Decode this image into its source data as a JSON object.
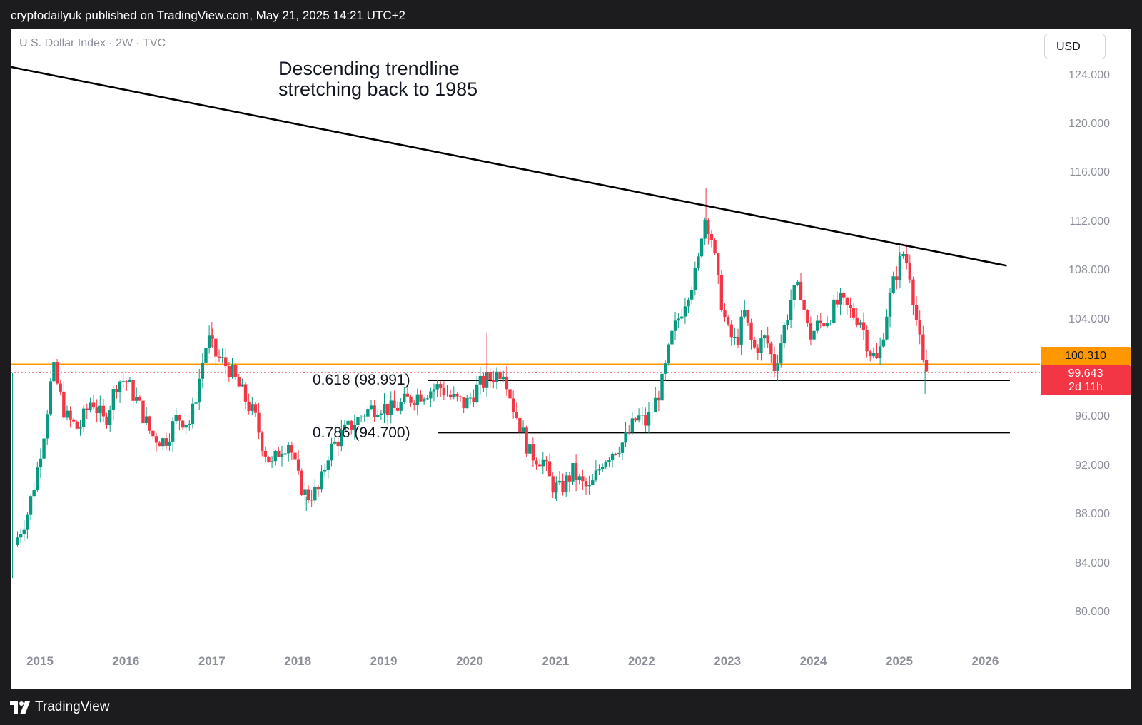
{
  "header": {
    "published": "cryptodailyuk published on TradingView.com, May 21, 2025 14:21 UTC+2"
  },
  "chart_header": {
    "symbol": "U.S. Dollar Index · 2W · TVC",
    "currency_button": "USD"
  },
  "annotation": {
    "line1": "Descending trendline",
    "line2": "stretching back to 1985"
  },
  "fib_levels": [
    {
      "label": "0.618 (98.991)",
      "value": 98.991
    },
    {
      "label": "0.786 (94.700)",
      "value": 94.7
    }
  ],
  "price_tags": {
    "resistance": "100.310",
    "last_price": "99.643",
    "countdown": "2d 11h"
  },
  "footer": {
    "brand": "TradingView"
  },
  "colors": {
    "up": "#089981",
    "down": "#f23645",
    "resistance_line": "#ff9800",
    "trendline": "#000000"
  },
  "chart_data": {
    "type": "candlestick",
    "title": "U.S. Dollar Index · 2W · TVC",
    "y_axis": {
      "ticks": [
        "80.000",
        "84.000",
        "88.000",
        "92.000",
        "96.000",
        "104.000",
        "108.000",
        "112.000",
        "116.000",
        "120.000",
        "124.000"
      ],
      "range": [
        78,
        128
      ]
    },
    "x_axis": {
      "ticks": [
        "2015",
        "2016",
        "2017",
        "2018",
        "2019",
        "2020",
        "2021",
        "2022",
        "2023",
        "2024",
        "2025",
        "2026"
      ]
    },
    "trendline": {
      "from": {
        "x": 2014.65,
        "y": 124.7
      },
      "to": {
        "x": 2026.25,
        "y": 108.4
      }
    },
    "horizontal_levels": [
      {
        "name": "resistance",
        "value": 100.31
      },
      {
        "name": "0.618",
        "value": 98.991
      },
      {
        "name": "0.786",
        "value": 94.7
      },
      {
        "name": "last",
        "value": 99.643
      }
    ],
    "close_path": [
      [
        2014.7,
        85.5
      ],
      [
        2014.85,
        88.0
      ],
      [
        2014.95,
        91.0
      ],
      [
        2015.05,
        95.0
      ],
      [
        2015.15,
        100.0
      ],
      [
        2015.3,
        96.0
      ],
      [
        2015.45,
        95.0
      ],
      [
        2015.6,
        97.5
      ],
      [
        2015.75,
        95.5
      ],
      [
        2015.9,
        99.0
      ],
      [
        2016.0,
        99.0
      ],
      [
        2016.15,
        97.0
      ],
      [
        2016.3,
        94.5
      ],
      [
        2016.45,
        94.0
      ],
      [
        2016.6,
        96.0
      ],
      [
        2016.75,
        95.5
      ],
      [
        2016.85,
        99.0
      ],
      [
        2016.95,
        102.5
      ],
      [
        2017.05,
        101.0
      ],
      [
        2017.2,
        100.0
      ],
      [
        2017.35,
        98.0
      ],
      [
        2017.5,
        96.0
      ],
      [
        2017.6,
        93.5
      ],
      [
        2017.7,
        92.0
      ],
      [
        2017.8,
        93.5
      ],
      [
        2017.9,
        94.0
      ],
      [
        2018.0,
        91.0
      ],
      [
        2018.1,
        89.5
      ],
      [
        2018.25,
        90.0
      ],
      [
        2018.35,
        93.0
      ],
      [
        2018.5,
        94.5
      ],
      [
        2018.65,
        95.5
      ],
      [
        2018.8,
        96.5
      ],
      [
        2018.95,
        97.0
      ],
      [
        2019.1,
        96.5
      ],
      [
        2019.3,
        97.5
      ],
      [
        2019.45,
        98.0
      ],
      [
        2019.65,
        98.5
      ],
      [
        2019.8,
        97.5
      ],
      [
        2019.95,
        97.0
      ],
      [
        2020.1,
        98.5
      ],
      [
        2020.2,
        99.0
      ],
      [
        2020.3,
        99.5
      ],
      [
        2020.4,
        100.0
      ],
      [
        2020.5,
        97.0
      ],
      [
        2020.6,
        95.0
      ],
      [
        2020.7,
        93.0
      ],
      [
        2020.85,
        92.5
      ],
      [
        2020.95,
        90.5
      ],
      [
        2021.05,
        90.0
      ],
      [
        2021.2,
        91.5
      ],
      [
        2021.3,
        90.5
      ],
      [
        2021.4,
        90.0
      ],
      [
        2021.55,
        92.5
      ],
      [
        2021.7,
        93.5
      ],
      [
        2021.8,
        94.0
      ],
      [
        2021.95,
        96.0
      ],
      [
        2022.05,
        95.5
      ],
      [
        2022.15,
        97.0
      ],
      [
        2022.25,
        99.0
      ],
      [
        2022.35,
        102.5
      ],
      [
        2022.45,
        104.5
      ],
      [
        2022.55,
        106.5
      ],
      [
        2022.65,
        108.0
      ],
      [
        2022.72,
        112.5
      ],
      [
        2022.8,
        111.5
      ],
      [
        2022.9,
        106.5
      ],
      [
        2023.0,
        103.0
      ],
      [
        2023.1,
        102.0
      ],
      [
        2023.2,
        104.5
      ],
      [
        2023.3,
        101.5
      ],
      [
        2023.45,
        102.5
      ],
      [
        2023.55,
        100.0
      ],
      [
        2023.65,
        103.0
      ],
      [
        2023.75,
        106.0
      ],
      [
        2023.85,
        106.5
      ],
      [
        2023.95,
        102.5
      ],
      [
        2024.05,
        103.5
      ],
      [
        2024.15,
        104.0
      ],
      [
        2024.3,
        105.5
      ],
      [
        2024.45,
        104.5
      ],
      [
        2024.55,
        104.0
      ],
      [
        2024.65,
        101.5
      ],
      [
        2024.75,
        100.5
      ],
      [
        2024.85,
        104.5
      ],
      [
        2024.95,
        107.5
      ],
      [
        2025.05,
        109.5
      ],
      [
        2025.12,
        108.0
      ],
      [
        2025.2,
        104.0
      ],
      [
        2025.28,
        100.0
      ],
      [
        2025.33,
        99.6
      ]
    ],
    "notable_highs": [
      {
        "x": 2017.0,
        "y": 103.8
      },
      {
        "x": 2020.2,
        "y": 102.9
      },
      {
        "x": 2022.75,
        "y": 114.8
      },
      {
        "x": 2025.0,
        "y": 110.2
      }
    ],
    "notable_lows": [
      {
        "x": 2014.68,
        "y": 82.8
      },
      {
        "x": 2018.1,
        "y": 88.3
      },
      {
        "x": 2021.0,
        "y": 89.3
      },
      {
        "x": 2025.3,
        "y": 97.9
      }
    ]
  }
}
